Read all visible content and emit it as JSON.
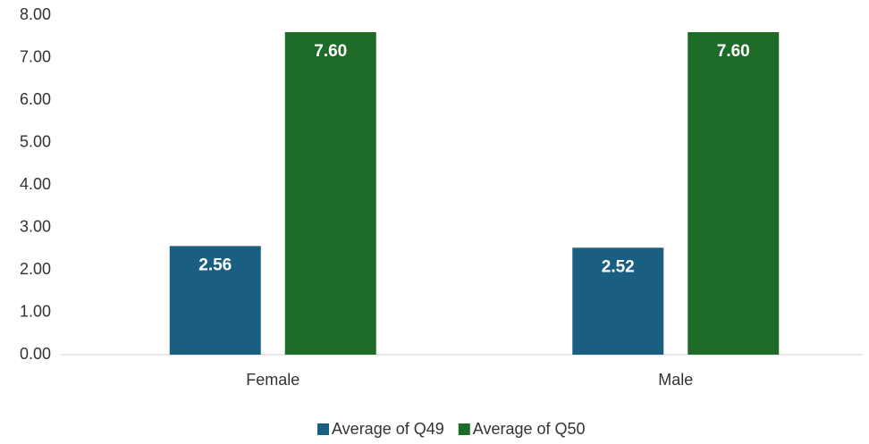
{
  "chart_data": {
    "type": "bar",
    "categories": [
      "Female",
      "Male"
    ],
    "series": [
      {
        "name": "Average of Q49",
        "color": "#1a5f82",
        "values": [
          2.56,
          2.52
        ],
        "value_labels": [
          "2.56",
          "2.52"
        ]
      },
      {
        "name": "Average of Q50",
        "color": "#1e6b27",
        "values": [
          7.6,
          7.6
        ],
        "value_labels": [
          "7.60",
          "7.60"
        ]
      }
    ],
    "ylim": [
      0,
      8
    ],
    "yticks": [
      {
        "value": 0,
        "label": "0.00"
      },
      {
        "value": 1,
        "label": "1.00"
      },
      {
        "value": 2,
        "label": "2.00"
      },
      {
        "value": 3,
        "label": "3.00"
      },
      {
        "value": 4,
        "label": "4.00"
      },
      {
        "value": 5,
        "label": "5.00"
      },
      {
        "value": 6,
        "label": "6.00"
      },
      {
        "value": 7,
        "label": "7.00"
      },
      {
        "value": 8,
        "label": "8.00"
      }
    ],
    "grid": false,
    "legend": "bottom"
  }
}
